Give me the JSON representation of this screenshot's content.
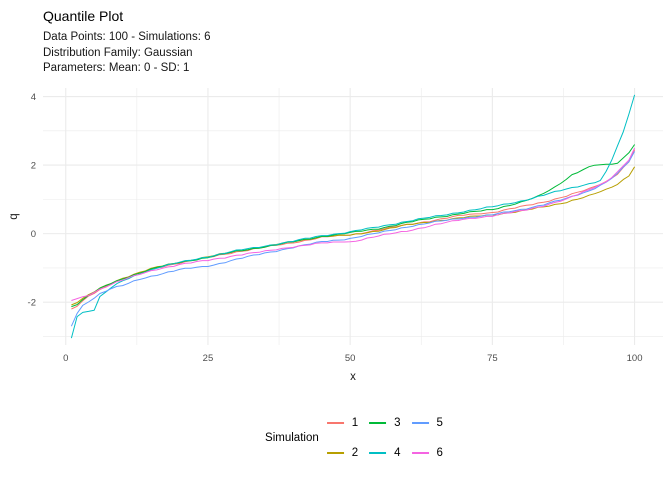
{
  "header": {
    "title": "Quantile Plot",
    "subtitle": "Data Points: 100 - Simulations: 6\nDistribution Family: Gaussian\nParameters: Mean: 0 - SD: 1"
  },
  "legend": {
    "title": "Simulation"
  },
  "style": {
    "grid_color": "#EBEBEB",
    "tick_text_color": "#4D4D4D",
    "axis_title_color": "#1a1a1a"
  },
  "chart_data": {
    "type": "line",
    "title": "Quantile Plot",
    "subtitle": "Data Points: 100 - Simulations: 6 | Distribution Family: Gaussian | Parameters: Mean: 0 - SD: 1",
    "xlabel": "x",
    "ylabel": "q",
    "xlim": [
      -4,
      105
    ],
    "ylim": [
      -3.25,
      4.25
    ],
    "x_ticks": [
      0,
      25,
      50,
      75,
      100
    ],
    "x_ticks_minor": [
      12.5,
      37.5,
      62.5,
      87.5
    ],
    "y_ticks": [
      -2,
      0,
      2,
      4
    ],
    "y_ticks_minor": [
      -3,
      -1,
      1,
      3
    ],
    "grid": true,
    "legend_position": "bottom",
    "points_per_simulation": 100,
    "sampling_note": "Each simulation is 100 sorted Gaussian samples plotted against rank; points below are anchor values read from the plot, interpolated to 100 points when drawn.",
    "series": [
      {
        "name": "1",
        "color": "#F8766D",
        "points": [
          [
            1,
            -2.2
          ],
          [
            2,
            -2.12
          ],
          [
            3,
            -1.97
          ],
          [
            4,
            -1.84
          ],
          [
            6,
            -1.63
          ],
          [
            8,
            -1.46
          ],
          [
            10,
            -1.31
          ],
          [
            13,
            -1.15
          ],
          [
            16,
            -1.0
          ],
          [
            20,
            -0.85
          ],
          [
            25,
            -0.7
          ],
          [
            30,
            -0.53
          ],
          [
            35,
            -0.4
          ],
          [
            40,
            -0.26
          ],
          [
            45,
            -0.11
          ],
          [
            50,
            -0.04
          ],
          [
            55,
            0.11
          ],
          [
            60,
            0.26
          ],
          [
            65,
            0.4
          ],
          [
            70,
            0.54
          ],
          [
            75,
            0.62
          ],
          [
            80,
            0.78
          ],
          [
            84,
            0.92
          ],
          [
            88,
            1.1
          ],
          [
            92,
            1.3
          ],
          [
            95,
            1.52
          ],
          [
            97,
            1.75
          ],
          [
            99,
            2.1
          ],
          [
            100,
            2.45
          ]
        ]
      },
      {
        "name": "2",
        "color": "#B79F00",
        "points": [
          [
            1,
            -2.08
          ],
          [
            2,
            -2.0
          ],
          [
            3,
            -1.9
          ],
          [
            4,
            -1.8
          ],
          [
            6,
            -1.6
          ],
          [
            8,
            -1.44
          ],
          [
            10,
            -1.3
          ],
          [
            13,
            -1.13
          ],
          [
            16,
            -0.98
          ],
          [
            20,
            -0.83
          ],
          [
            25,
            -0.68
          ],
          [
            30,
            -0.51
          ],
          [
            35,
            -0.38
          ],
          [
            40,
            -0.23
          ],
          [
            45,
            -0.09
          ],
          [
            50,
            -0.05
          ],
          [
            55,
            0.09
          ],
          [
            60,
            0.25
          ],
          [
            65,
            0.37
          ],
          [
            70,
            0.47
          ],
          [
            75,
            0.55
          ],
          [
            80,
            0.65
          ],
          [
            84,
            0.78
          ],
          [
            88,
            0.92
          ],
          [
            92,
            1.1
          ],
          [
            95,
            1.28
          ],
          [
            97,
            1.45
          ],
          [
            99,
            1.7
          ],
          [
            100,
            1.95
          ]
        ]
      },
      {
        "name": "3",
        "color": "#00BA38",
        "points": [
          [
            1,
            -2.13
          ],
          [
            2,
            -2.05
          ],
          [
            3,
            -1.93
          ],
          [
            4,
            -1.81
          ],
          [
            6,
            -1.61
          ],
          [
            8,
            -1.45
          ],
          [
            10,
            -1.32
          ],
          [
            13,
            -1.14
          ],
          [
            16,
            -0.99
          ],
          [
            20,
            -0.84
          ],
          [
            25,
            -0.69
          ],
          [
            30,
            -0.52
          ],
          [
            35,
            -0.38
          ],
          [
            40,
            -0.24
          ],
          [
            45,
            -0.08
          ],
          [
            50,
            0.02
          ],
          [
            55,
            0.15
          ],
          [
            60,
            0.32
          ],
          [
            65,
            0.47
          ],
          [
            70,
            0.6
          ],
          [
            75,
            0.7
          ],
          [
            80,
            0.92
          ],
          [
            83,
            1.08
          ],
          [
            86,
            1.35
          ],
          [
            89,
            1.72
          ],
          [
            91,
            1.88
          ],
          [
            93,
            2.0
          ],
          [
            95,
            2.0
          ],
          [
            96,
            1.96
          ],
          [
            97,
            2.05
          ],
          [
            98,
            2.2
          ],
          [
            99,
            2.38
          ],
          [
            100,
            2.6
          ]
        ]
      },
      {
        "name": "4",
        "color": "#00BFC4",
        "points": [
          [
            1,
            -3.05
          ],
          [
            2,
            -2.4
          ],
          [
            3,
            -2.3
          ],
          [
            5,
            -2.22
          ],
          [
            6,
            -1.85
          ],
          [
            8,
            -1.58
          ],
          [
            10,
            -1.38
          ],
          [
            13,
            -1.17
          ],
          [
            16,
            -1.0
          ],
          [
            20,
            -0.84
          ],
          [
            25,
            -0.67
          ],
          [
            30,
            -0.5
          ],
          [
            35,
            -0.36
          ],
          [
            40,
            -0.22
          ],
          [
            45,
            -0.06
          ],
          [
            50,
            0.05
          ],
          [
            55,
            0.2
          ],
          [
            60,
            0.36
          ],
          [
            65,
            0.5
          ],
          [
            70,
            0.65
          ],
          [
            75,
            0.78
          ],
          [
            80,
            0.95
          ],
          [
            84,
            1.12
          ],
          [
            88,
            1.3
          ],
          [
            91,
            1.42
          ],
          [
            93,
            1.5
          ],
          [
            94,
            1.55
          ],
          [
            95,
            1.8
          ],
          [
            96,
            2.15
          ],
          [
            97,
            2.55
          ],
          [
            98,
            2.95
          ],
          [
            99,
            3.5
          ],
          [
            100,
            4.05
          ]
        ]
      },
      {
        "name": "5",
        "color": "#619CFF",
        "points": [
          [
            1,
            -2.7
          ],
          [
            2,
            -2.32
          ],
          [
            3,
            -2.1
          ],
          [
            4,
            -1.98
          ],
          [
            6,
            -1.75
          ],
          [
            8,
            -1.6
          ],
          [
            10,
            -1.52
          ],
          [
            13,
            -1.33
          ],
          [
            16,
            -1.2
          ],
          [
            20,
            -1.05
          ],
          [
            25,
            -0.95
          ],
          [
            30,
            -0.75
          ],
          [
            35,
            -0.57
          ],
          [
            40,
            -0.4
          ],
          [
            45,
            -0.24
          ],
          [
            50,
            -0.14
          ],
          [
            55,
            0.02
          ],
          [
            60,
            0.2
          ],
          [
            65,
            0.34
          ],
          [
            70,
            0.46
          ],
          [
            75,
            0.55
          ],
          [
            80,
            0.7
          ],
          [
            84,
            0.85
          ],
          [
            88,
            1.02
          ],
          [
            92,
            1.25
          ],
          [
            95,
            1.5
          ],
          [
            97,
            1.75
          ],
          [
            99,
            2.1
          ],
          [
            100,
            2.4
          ]
        ]
      },
      {
        "name": "6",
        "color": "#F564E2",
        "points": [
          [
            1,
            -1.95
          ],
          [
            2,
            -1.9
          ],
          [
            3,
            -1.86
          ],
          [
            4,
            -1.8
          ],
          [
            6,
            -1.62
          ],
          [
            8,
            -1.47
          ],
          [
            10,
            -1.35
          ],
          [
            13,
            -1.19
          ],
          [
            16,
            -1.04
          ],
          [
            20,
            -0.9
          ],
          [
            25,
            -0.78
          ],
          [
            30,
            -0.63
          ],
          [
            35,
            -0.52
          ],
          [
            40,
            -0.38
          ],
          [
            45,
            -0.28
          ],
          [
            50,
            -0.24
          ],
          [
            55,
            -0.07
          ],
          [
            60,
            0.08
          ],
          [
            65,
            0.26
          ],
          [
            70,
            0.42
          ],
          [
            75,
            0.52
          ],
          [
            80,
            0.66
          ],
          [
            84,
            0.82
          ],
          [
            88,
            1.0
          ],
          [
            92,
            1.28
          ],
          [
            95,
            1.52
          ],
          [
            97,
            1.8
          ],
          [
            99,
            2.15
          ],
          [
            100,
            2.5
          ]
        ]
      }
    ]
  }
}
